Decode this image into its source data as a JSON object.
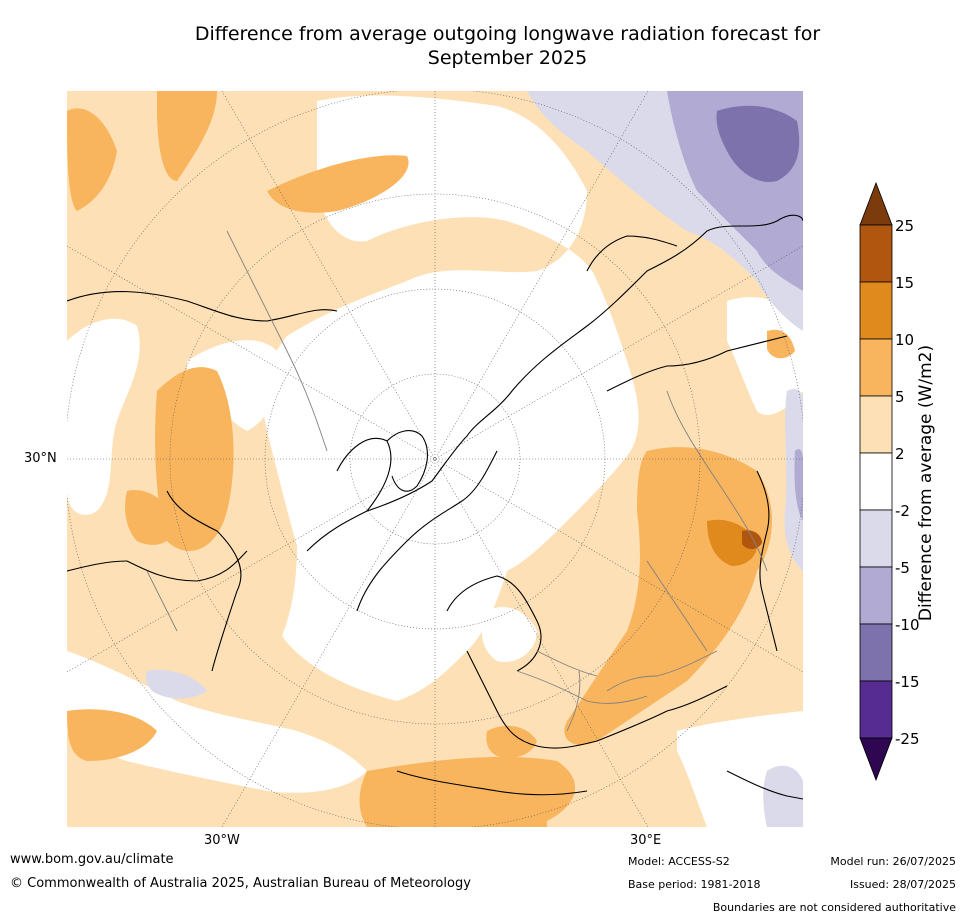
{
  "title": {
    "line1": "Difference from average outgoing longwave radiation forecast for",
    "line2": "September 2025"
  },
  "map": {
    "projection": "north-polar-stereographic",
    "graticule_labels": {
      "lat_30": "30°N",
      "lon_w30": "30°W",
      "lon_e30": "30°E"
    },
    "features": [
      "coastlines",
      "country-boundaries",
      "anomaly-shading"
    ]
  },
  "colorbar": {
    "title": "Difference from average (W/m2)",
    "tick_labels": [
      "25",
      "15",
      "10",
      "5",
      "2",
      "-2",
      "-5",
      "-10",
      "-15",
      "-25"
    ],
    "colors": [
      "#7b3b0c",
      "#b1560f",
      "#e08a1e",
      "#f9b55e",
      "#fde0b5",
      "#ffffff",
      "#dadaeb",
      "#b1abd3",
      "#7e72ac",
      "#572c92",
      "#2f0652"
    ],
    "extend": "both"
  },
  "footer": {
    "url": "www.bom.gov.au/climate",
    "copyright": "© Commonwealth of Australia 2025, Australian Bureau of Meteorology",
    "model": "Model: ACCESS-S2",
    "base_period": "Base period: 1981-2018",
    "model_run": "Model run: 26/07/2025",
    "issued": "Issued: 28/07/2025",
    "disclaimer": "Boundaries are not considered authoritative"
  }
}
